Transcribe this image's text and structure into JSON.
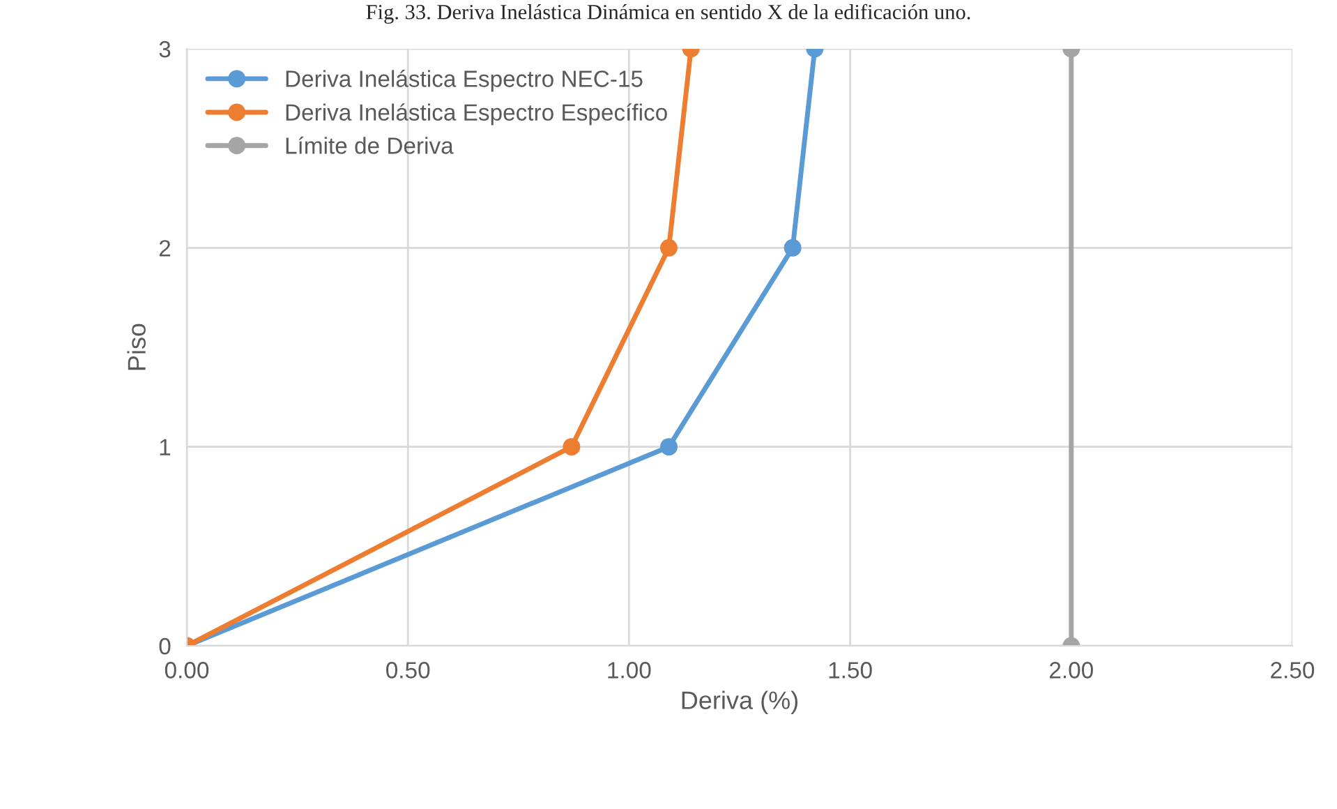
{
  "chart_data": {
    "type": "line",
    "title": "Fig. 33. Deriva Inelástica Dinámica en sentido X de la edificación uno.",
    "xlabel": "Deriva (%)",
    "ylabel": "Piso",
    "series": [
      {
        "name": "Deriva Inelástica Espectro NEC-15",
        "color": "#5b9bd5",
        "x": [
          0.0,
          1.09,
          1.37,
          1.42
        ],
        "values": [
          0,
          1,
          2,
          3
        ]
      },
      {
        "name": "Deriva Inelástica Espectro Específico",
        "color": "#ed7d31",
        "x": [
          0.0,
          0.87,
          1.09,
          1.14
        ],
        "values": [
          0,
          1,
          2,
          3
        ]
      },
      {
        "name": "Límite de Deriva",
        "color": "#a5a5a5",
        "x": [
          2.0,
          2.0
        ],
        "values": [
          0,
          3
        ]
      }
    ],
    "xlim": [
      0,
      2.5
    ],
    "xticks": [
      {
        "value": 0,
        "label": "0.00"
      },
      {
        "value": 0.5,
        "label": "0.50"
      },
      {
        "value": 1.0,
        "label": "1.00"
      },
      {
        "value": 1.5,
        "label": "1.50"
      },
      {
        "value": 2.0,
        "label": "2.00"
      },
      {
        "value": 2.5,
        "label": "2.50"
      }
    ],
    "ylim": [
      0,
      3
    ],
    "yticks": [
      0,
      1,
      2,
      3
    ],
    "grid": true,
    "legend": "top left",
    "marker": "circle",
    "line_style": "solid"
  }
}
